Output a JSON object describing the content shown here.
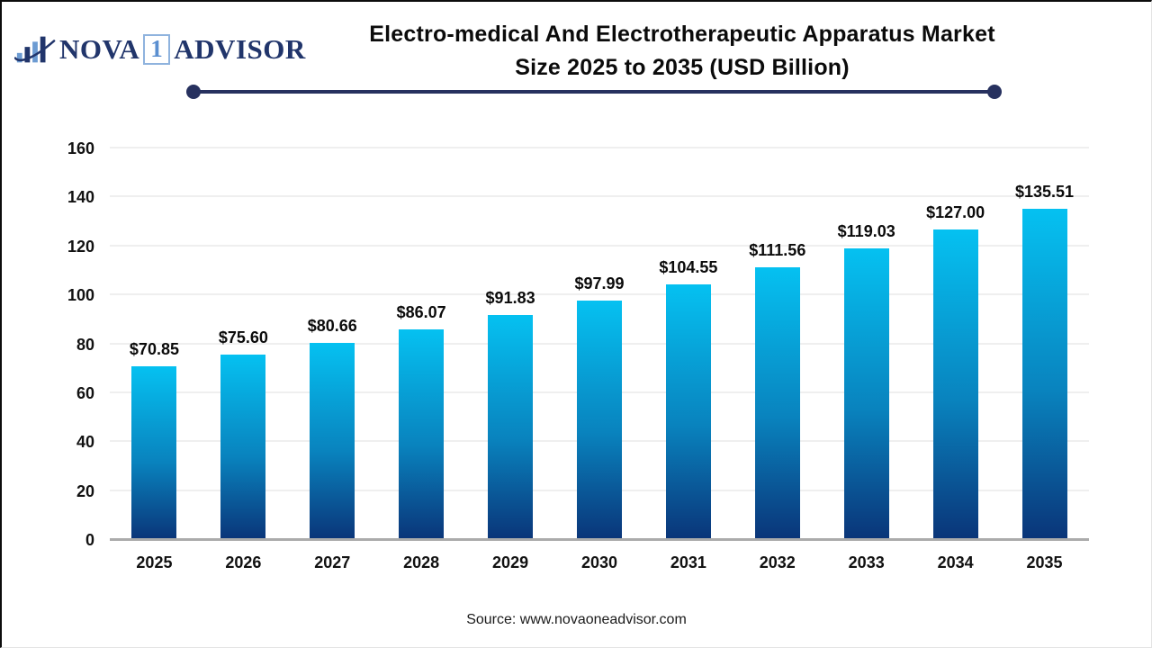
{
  "header": {
    "logo": {
      "icon": "bar-chart-swoosh-logo",
      "part1": "NOVA",
      "part2": "1",
      "part3": "ADVISOR"
    },
    "title_line1": "Electro-medical And Electrotherapeutic Apparatus Market",
    "title_line2": "Size 2025 to 2035 (USD Billion)"
  },
  "chart_data": {
    "type": "bar",
    "title": "Electro-medical And Electrotherapeutic Apparatus Market Size 2025 to 2035 (USD Billion)",
    "unit": "USD Billion",
    "categories": [
      "2025",
      "2026",
      "2027",
      "2028",
      "2029",
      "2030",
      "2031",
      "2032",
      "2033",
      "2034",
      "2035"
    ],
    "values": [
      70.85,
      75.6,
      80.66,
      86.07,
      91.83,
      97.99,
      104.55,
      111.56,
      119.03,
      127.0,
      135.51
    ],
    "value_prefix": "$",
    "xlabel": "",
    "ylabel": "",
    "ylim": [
      0,
      160
    ],
    "ytick_step": 20,
    "grid": true,
    "legend_position": "none",
    "bar_gradient_top": "#05c1f1",
    "bar_gradient_mid": "#0983be",
    "bar_gradient_bottom": "#0a3478"
  },
  "footer": {
    "source": "Source: www.novaoneadvisor.com"
  },
  "colors": {
    "accent_navy": "#27315f",
    "logo_navy": "#21356b",
    "logo_light_blue": "#6c9bd2",
    "baseline_gray": "#ababab",
    "gridline_gray": "#efefef",
    "title_black": "#0b0b0b"
  }
}
